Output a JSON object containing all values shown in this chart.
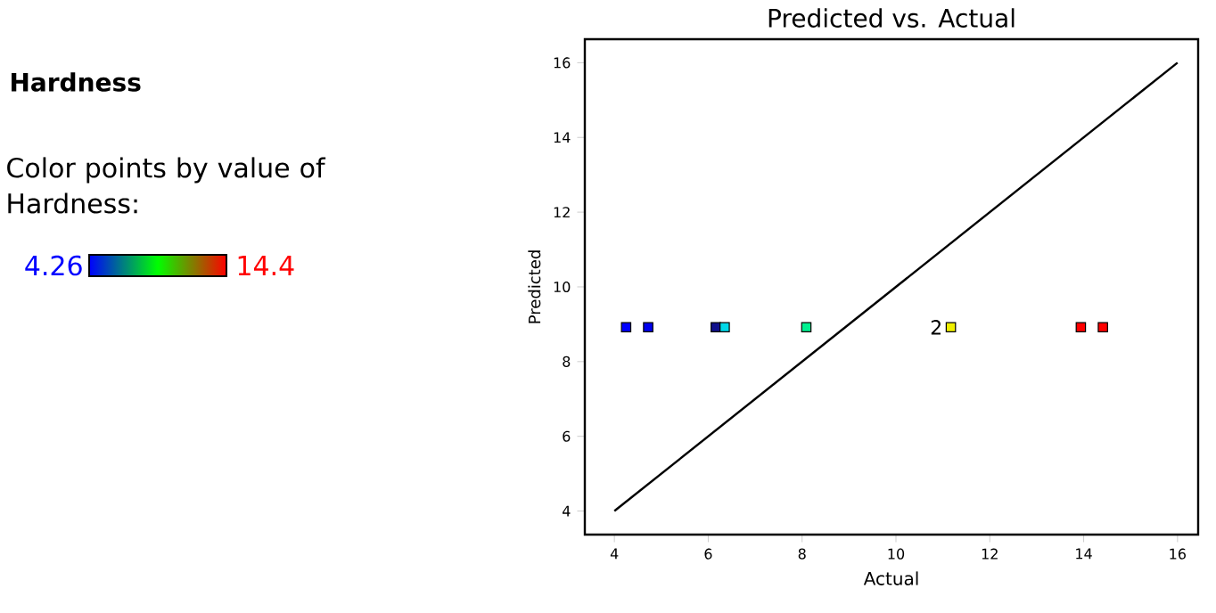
{
  "chart_data": {
    "type": "scatter",
    "title": "Predicted vs. Actual",
    "xlabel": "Actual",
    "ylabel": "Predicted",
    "clabel": "Color points by value of Hardness:",
    "annotations": [
      "Hardness",
      {
        "text": "2",
        "x": 11.17,
        "y": 8.92
      },
      "4.26",
      "14.4"
    ],
    "xlim": [
      3.37,
      16.44
    ],
    "ylim": [
      3.37,
      16.63
    ],
    "xticks": [
      4,
      6,
      8,
      10,
      12,
      14,
      16
    ],
    "yticks": [
      4,
      6,
      8,
      10,
      12,
      14,
      16
    ],
    "grid": false,
    "marker": "square",
    "series": [
      {
        "x": [
          4.25,
          4.72,
          6.16,
          6.35,
          8.09,
          11.17,
          13.94,
          14.41
        ],
        "values": [
          8.92,
          8.92,
          8.92,
          8.92,
          8.92,
          8.92,
          8.92,
          8.92
        ],
        "colors": [
          "#0000ff",
          "#0000ee",
          "#10108c",
          "#00d8e8",
          "#00f090",
          "#f0f000",
          "#ff0000",
          "#ff0000"
        ]
      },
      {
        "type": "line",
        "marker": "none",
        "color": "#000000",
        "x": [
          4,
          16
        ],
        "values": [
          4,
          16
        ]
      }
    ]
  }
}
